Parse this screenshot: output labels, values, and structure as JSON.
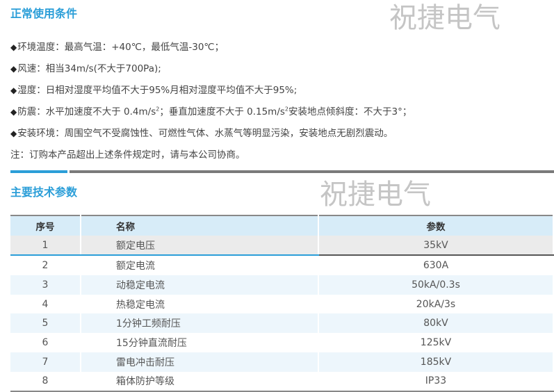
{
  "sections": {
    "conditions_title": "正常使用条件",
    "conditions": [
      {
        "bullet": "◆",
        "text": "环境温度：最高气温：+40℃，最低气温-30℃；"
      },
      {
        "bullet": "◆",
        "text": "风速：相当34m/s(不大于700Pa);"
      },
      {
        "bullet": "◆",
        "text": "湿度：日相对湿度平均值不大于95%月相对湿度平均值不大于95%;"
      },
      {
        "bullet": "◆",
        "text_a": "防震：水平加速度不大于 0.4m/s",
        "sup_a": "2",
        "text_b": "；垂直加速度不大于 0.15m/s",
        "sup_b": "2",
        "text_c": "安装地点倾斜度：不大于3°；"
      },
      {
        "bullet": "◆",
        "text": "安装环境：周围空气不受腐蚀性、可燃性气体、水蒸气等明显污染，安装地点无剧烈震动。"
      }
    ],
    "note": "注：订购本产品超出上述条件规定时，请与本公司协商。",
    "params_title": "主要技术参数"
  },
  "table": {
    "headers": [
      "序号",
      "名称",
      "参数"
    ],
    "rows": [
      [
        "1",
        "额定电压",
        "35kV"
      ],
      [
        "2",
        "额定电流",
        "630A"
      ],
      [
        "3",
        "动稳定电流",
        "50kA/0.3s"
      ],
      [
        "4",
        "热稳定电流",
        "20kA/3s"
      ],
      [
        "5",
        "1分钟工频耐压",
        "80kV"
      ],
      [
        "6",
        "15分钟直流耐压",
        "125kV"
      ],
      [
        "7",
        "雷电冲击耐压",
        "185kV"
      ],
      [
        "8",
        "箱体防护等级",
        "IP33"
      ]
    ]
  },
  "watermark": "祝捷电气",
  "colors": {
    "accent": "#2b9ed8",
    "header_bg": "#d7ecf8",
    "row_alt": "#edf6fc"
  }
}
